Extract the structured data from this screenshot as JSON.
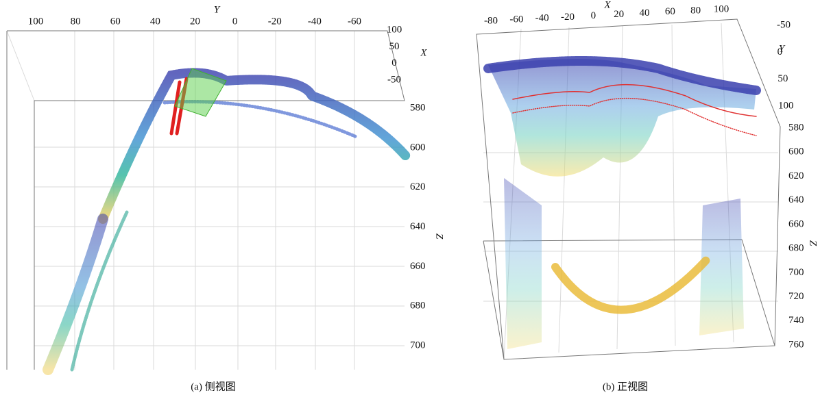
{
  "figure": {
    "panels": [
      {
        "caption": "(a) 侧视图",
        "axes": {
          "y": {
            "label": "Y",
            "ticks": [
              100,
              80,
              60,
              40,
              20,
              0,
              -20,
              -40,
              -60
            ]
          },
          "x": {
            "label": "X",
            "ticks": [
              100,
              50,
              0,
              -50
            ]
          },
          "z": {
            "label": "Z",
            "ticks": [
              580,
              600,
              620,
              640,
              660,
              680,
              700
            ]
          }
        }
      },
      {
        "caption": "(b) 正视图",
        "axes": {
          "x": {
            "label": "X",
            "ticks": [
              -80,
              -60,
              -40,
              -20,
              0,
              20,
              40,
              60,
              80,
              100
            ]
          },
          "y": {
            "label": "Y",
            "ticks": [
              -50,
              0,
              50,
              100
            ]
          },
          "z": {
            "label": "Z",
            "ticks": [
              580,
              600,
              620,
              640,
              660,
              680,
              700,
              720,
              740,
              760
            ]
          }
        }
      }
    ]
  }
}
